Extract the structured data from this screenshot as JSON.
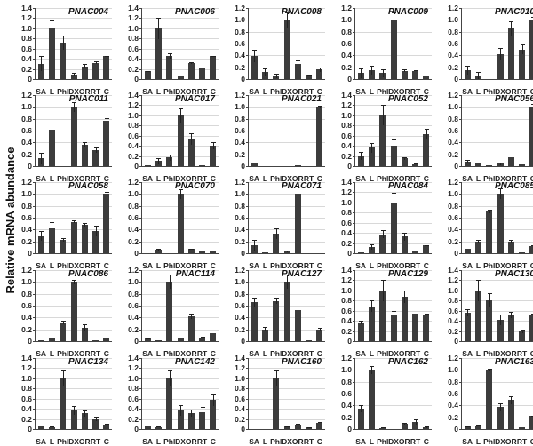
{
  "ylabel": "Relative mRNA abundance",
  "categories": [
    "SA",
    "L",
    "Phl",
    "DX",
    "OR",
    "RT",
    "C"
  ],
  "chart_data": {
    "type": "bar",
    "title": "",
    "xlabel": "",
    "ylabel": "Relative mRNA abundance",
    "categories": [
      "SA",
      "L",
      "Phl",
      "DX",
      "OR",
      "RT",
      "C"
    ],
    "layout": {
      "grid": true,
      "rows": 5,
      "cols": 5,
      "legend": "none"
    },
    "panels": [
      {
        "name": "PNAC004",
        "ylim": [
          0,
          1.4
        ],
        "values": [
          0.3,
          1.0,
          0.72,
          0.09,
          0.25,
          0.32,
          0.45
        ],
        "errors": [
          0.15,
          0.15,
          0.14,
          0.03,
          0.04,
          0.03,
          0.01
        ]
      },
      {
        "name": "PNAC006",
        "ylim": [
          0,
          1.4
        ],
        "values": [
          0.15,
          1.0,
          0.46,
          0.06,
          0.31,
          0.21,
          0.45
        ],
        "errors": [
          0.01,
          0.21,
          0.05,
          0.01,
          0.02,
          0.01,
          0.01
        ]
      },
      {
        "name": "PNAC008",
        "ylim": [
          0,
          1.2
        ],
        "values": [
          0.39,
          0.12,
          0.05,
          1.0,
          0.25,
          0.07,
          0.16
        ],
        "errors": [
          0.1,
          0.06,
          0.04,
          0.13,
          0.07,
          0.01,
          0.04
        ]
      },
      {
        "name": "PNAC009",
        "ylim": [
          0,
          1.2
        ],
        "values": [
          0.1,
          0.15,
          0.1,
          1.0,
          0.14,
          0.14,
          0.05
        ],
        "errors": [
          0.08,
          0.07,
          0.07,
          0.12,
          0.02,
          0.01,
          0.01
        ]
      },
      {
        "name": "PNAC010",
        "ylim": [
          0,
          1.2
        ],
        "values": [
          0.15,
          0.06,
          0.0,
          0.42,
          0.85,
          0.5,
          1.0
        ],
        "errors": [
          0.08,
          0.06,
          0.0,
          0.11,
          0.12,
          0.08,
          0.05
        ]
      },
      {
        "name": "PNAC011",
        "ylim": [
          0,
          1.2
        ],
        "values": [
          0.13,
          0.61,
          0.0,
          1.0,
          0.36,
          0.27,
          0.76
        ],
        "errors": [
          0.1,
          0.12,
          0.0,
          0.08,
          0.04,
          0.04,
          0.05
        ]
      },
      {
        "name": "PNAC017",
        "ylim": [
          0,
          1.4
        ],
        "values": [
          0.01,
          0.1,
          0.17,
          1.0,
          0.53,
          0.02,
          0.41
        ],
        "errors": [
          0.0,
          0.06,
          0.06,
          0.14,
          0.11,
          0.0,
          0.07
        ]
      },
      {
        "name": "PNAC021",
        "ylim": [
          0,
          1.2
        ],
        "values": [
          0.05,
          0.0,
          0.0,
          0.0,
          0.01,
          0.0,
          1.0
        ],
        "errors": [
          0.0,
          0.0,
          0.0,
          0.0,
          0.0,
          0.0,
          0.02
        ]
      },
      {
        "name": "PNAC052",
        "ylim": [
          0,
          1.4
        ],
        "values": [
          0.2,
          0.36,
          1.0,
          0.4,
          0.15,
          0.04,
          0.63
        ],
        "errors": [
          0.08,
          0.1,
          0.2,
          0.13,
          0.03,
          0.01,
          0.1
        ]
      },
      {
        "name": "PNAC056",
        "ylim": [
          0,
          1.2
        ],
        "values": [
          0.08,
          0.05,
          0.02,
          0.04,
          0.15,
          0.03,
          1.0
        ],
        "errors": [
          0.03,
          0.01,
          0.0,
          0.02,
          0.0,
          0.0,
          0.05
        ]
      },
      {
        "name": "PNAC058",
        "ylim": [
          0,
          1.2
        ],
        "values": [
          0.29,
          0.42,
          0.22,
          0.53,
          0.48,
          0.37,
          1.0
        ],
        "errors": [
          0.08,
          0.1,
          0.03,
          0.02,
          0.03,
          0.09,
          0.04
        ]
      },
      {
        "name": "PNAC070",
        "ylim": [
          0,
          1.2
        ],
        "values": [
          0.0,
          0.06,
          0.0,
          1.0,
          0.07,
          0.04,
          0.05
        ],
        "errors": [
          0.0,
          0.02,
          0.0,
          0.08,
          0.01,
          0.0,
          0.0
        ]
      },
      {
        "name": "PNAC071",
        "ylim": [
          0,
          1.2
        ],
        "values": [
          0.14,
          0.01,
          0.33,
          0.03,
          1.0,
          0.0,
          0.0
        ],
        "errors": [
          0.09,
          0.0,
          0.09,
          0.02,
          0.12,
          0.0,
          0.0
        ]
      },
      {
        "name": "PNAC084",
        "ylim": [
          0,
          1.4
        ],
        "values": [
          0.02,
          0.12,
          0.37,
          1.0,
          0.33,
          0.05,
          0.15
        ],
        "errors": [
          0.0,
          0.05,
          0.08,
          0.19,
          0.08,
          0.0,
          0.01
        ]
      },
      {
        "name": "PNAC085",
        "ylim": [
          0,
          1.2
        ],
        "values": [
          0.08,
          0.2,
          0.7,
          1.0,
          0.2,
          0.02,
          0.12
        ],
        "errors": [
          0.0,
          0.02,
          0.03,
          0.09,
          0.02,
          0.0,
          0.01
        ]
      },
      {
        "name": "PNAC086",
        "ylim": [
          0,
          1.2
        ],
        "values": [
          0.01,
          0.05,
          0.31,
          1.0,
          0.23,
          0.01,
          0.04
        ],
        "errors": [
          0.0,
          0.01,
          0.03,
          0.04,
          0.05,
          0.0,
          0.0
        ]
      },
      {
        "name": "PNAC114",
        "ylim": [
          0,
          1.2
        ],
        "values": [
          0.04,
          0.01,
          1.0,
          0.05,
          0.42,
          0.06,
          0.14
        ],
        "errors": [
          0.01,
          0.0,
          0.12,
          0.01,
          0.04,
          0.02,
          0.0
        ]
      },
      {
        "name": "PNAC127",
        "ylim": [
          0,
          1.2
        ],
        "values": [
          0.66,
          0.2,
          0.68,
          1.0,
          0.52,
          0.02,
          0.2
        ],
        "errors": [
          0.07,
          0.04,
          0.05,
          0.12,
          0.07,
          0.0,
          0.02
        ]
      },
      {
        "name": "PNAC129",
        "ylim": [
          0,
          1.4
        ],
        "values": [
          0.37,
          0.69,
          1.0,
          0.5,
          0.87,
          0.55,
          0.52
        ],
        "errors": [
          0.03,
          0.12,
          0.21,
          0.1,
          0.12,
          0.0,
          0.02
        ]
      },
      {
        "name": "PNAC130",
        "ylim": [
          0,
          1.4
        ],
        "values": [
          0.56,
          1.0,
          0.81,
          0.42,
          0.51,
          0.19,
          0.52
        ],
        "errors": [
          0.07,
          0.21,
          0.14,
          0.11,
          0.06,
          0.04,
          0.03
        ]
      },
      {
        "name": "PNAC134",
        "ylim": [
          0,
          1.4
        ],
        "values": [
          0.06,
          0.04,
          1.0,
          0.37,
          0.31,
          0.2,
          0.09
        ],
        "errors": [
          0.01,
          0.01,
          0.15,
          0.09,
          0.06,
          0.05,
          0.01
        ]
      },
      {
        "name": "PNAC142",
        "ylim": [
          0,
          1.4
        ],
        "values": [
          0.06,
          0.04,
          1.0,
          0.37,
          0.31,
          0.34,
          0.57
        ],
        "errors": [
          0.01,
          0.01,
          0.16,
          0.1,
          0.07,
          0.1,
          0.12
        ]
      },
      {
        "name": "PNAC160",
        "ylim": [
          0,
          1.4
        ],
        "values": [
          0.0,
          0.0,
          1.0,
          0.05,
          0.09,
          0.03,
          0.13
        ],
        "errors": [
          0.0,
          0.0,
          0.16,
          0.01,
          0.02,
          0.01,
          0.01
        ]
      },
      {
        "name": "PNAC162",
        "ylim": [
          0,
          1.2
        ],
        "values": [
          0.34,
          1.0,
          0.02,
          0.0,
          0.09,
          0.12,
          0.03
        ],
        "errors": [
          0.06,
          0.07,
          0.01,
          0.0,
          0.01,
          0.04,
          0.01
        ]
      },
      {
        "name": "PNAC163",
        "ylim": [
          0,
          1.2
        ],
        "values": [
          0.04,
          0.06,
          1.0,
          0.37,
          0.49,
          0.03,
          0.22
        ],
        "errors": [
          0.01,
          0.02,
          0.02,
          0.07,
          0.07,
          0.0,
          0.01
        ]
      }
    ]
  }
}
